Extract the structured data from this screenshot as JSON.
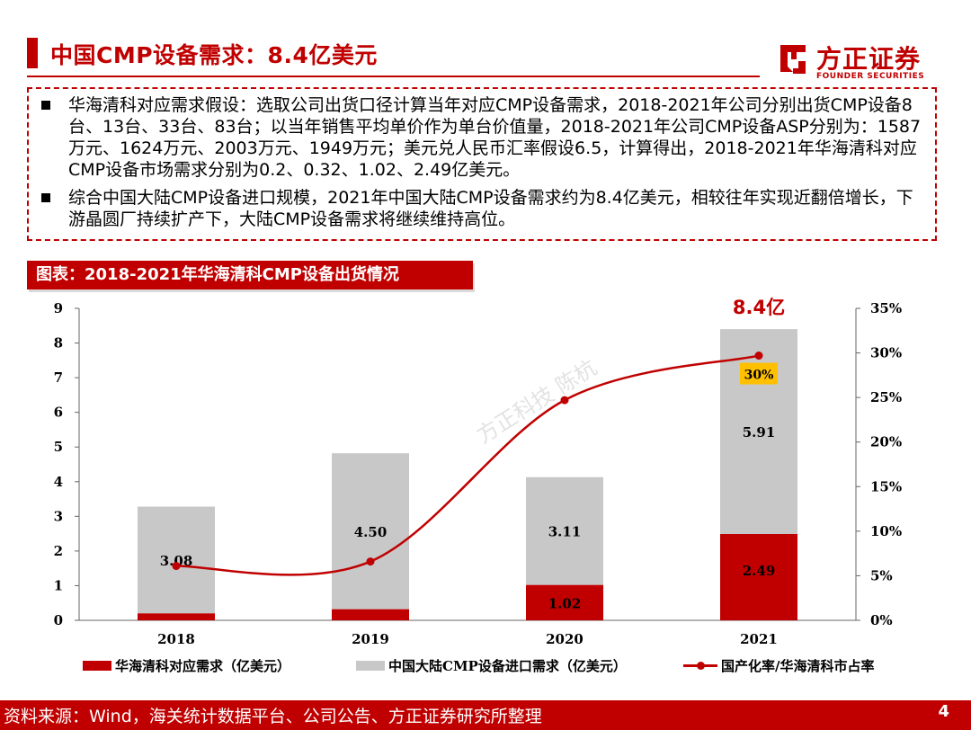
{
  "header": {
    "title": "中国CMP设备需求：8.4亿美元",
    "logo_text": "方正证券",
    "logo_sub": "FOUNDER SECURITIES"
  },
  "bullets": [
    "华海清科对应需求假设：选取公司出货口径计算当年对应CMP设备需求，2018-2021年公司分别出货CMP设备8台、13台、33台、83台；以当年销售平均单价作为单台价值量，2018-2021年公司CMP设备ASP分别为：1587万元、1624万元、2003万元、1949万元；美元兑人民币汇率假设6.5，计算得出，2018-2021年华海清科对应CMP设备市场需求分别为0.2、0.32、1.02、2.49亿美元。",
    "综合中国大陆CMP设备进口规模，2021年中国大陆CMP设备需求约为8.4亿美元，相较往年实现近翻倍增长，下游晶圆厂持续扩产下，大陆CMP设备需求将继续维持高位。"
  ],
  "figure_label": "图表：2018-2021年华海清科CMP设备出货情况",
  "watermark": "方正科技 陈杭",
  "chart_data": {
    "type": "bar",
    "stacked": true,
    "categories": [
      "2018",
      "2019",
      "2020",
      "2021"
    ],
    "series": [
      {
        "name": "华海清科对应需求（亿美元）",
        "values": [
          0.2,
          0.32,
          1.02,
          2.49
        ],
        "labels": [
          "",
          "",
          "1.02",
          "2.49"
        ],
        "color": "#c00000"
      },
      {
        "name": "中国大陆CMP设备进口需求（亿美元）",
        "values": [
          3.08,
          4.5,
          3.11,
          5.91
        ],
        "labels": [
          "3.08",
          "4.50",
          "3.11",
          "5.91"
        ],
        "color": "#c8c8c8"
      }
    ],
    "line_series": {
      "name": "国产化率/华海清科市占率",
      "values": [
        6.1,
        6.6,
        24.7,
        29.7
      ],
      "color": "#c00000",
      "axis": "right"
    },
    "ylim": [
      0,
      9
    ],
    "y_ticks": [
      "0",
      "1",
      "2",
      "3",
      "4",
      "5",
      "6",
      "7",
      "8",
      "9"
    ],
    "y2lim": [
      0,
      35
    ],
    "y2_ticks": [
      "0%",
      "5%",
      "10%",
      "15%",
      "20%",
      "25%",
      "30%",
      "35%"
    ],
    "annotations": {
      "total_2021": "8.4亿",
      "share_2021": "30%"
    },
    "grid": false,
    "legend_position": "bottom"
  },
  "footer": {
    "source": "资料来源：Wind，海关统计数据平台、公司公告、方正证券研究所整理",
    "page": "4"
  }
}
